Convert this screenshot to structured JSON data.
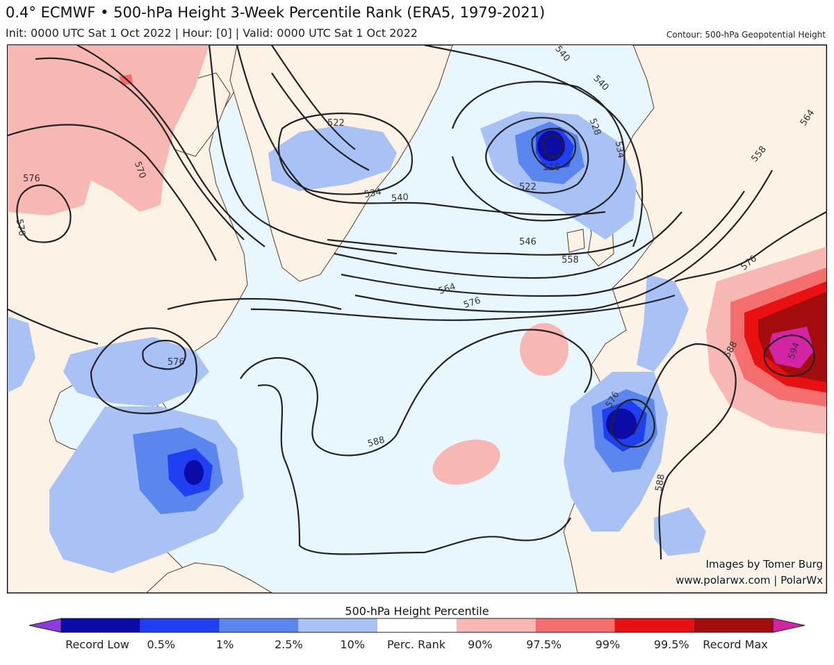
{
  "header": {
    "title": "0.4° ECMWF • 500-hPa Height 3-Week Percentile Rank (ERA5, 1979-2021)",
    "subtitle": "Init: 0000 UTC Sat 1 Oct 2022 | Hour: [0] | Valid: 0000 UTC Sat 1 Oct 2022",
    "contour_note": "Contour: 500-hPa Geopotential Height"
  },
  "map": {
    "ocean_color": "#e8f7fd",
    "land_color": "#fcf3e6",
    "border_color": "#5a3a1a",
    "contour_color": "#222222",
    "contour_labels": [
      "576",
      "570",
      "570",
      "522",
      "534",
      "540",
      "540",
      "540",
      "528",
      "534",
      "516",
      "522",
      "546",
      "558",
      "564",
      "576",
      "558",
      "564",
      "576",
      "588",
      "588",
      "588",
      "576",
      "576",
      "594"
    ]
  },
  "credits": {
    "line1": "Images by Tomer Burg",
    "line2": "www.polarwx.com | PolarWx"
  },
  "colorbar": {
    "title": "500-hPa Height Percentile",
    "colors": [
      "#8b3be0",
      "#0b0ba8",
      "#1f3ff0",
      "#5b86ee",
      "#a9c2f5",
      "#ffffff",
      "#f7b8b3",
      "#f46e6e",
      "#e81010",
      "#a30d0d",
      "#d424a6"
    ],
    "labels": [
      "Record Low",
      "0.5%",
      "1%",
      "2.5%",
      "10%",
      "Perc. Rank",
      "90%",
      "97.5%",
      "99%",
      "99.5%",
      "Record Max"
    ]
  }
}
